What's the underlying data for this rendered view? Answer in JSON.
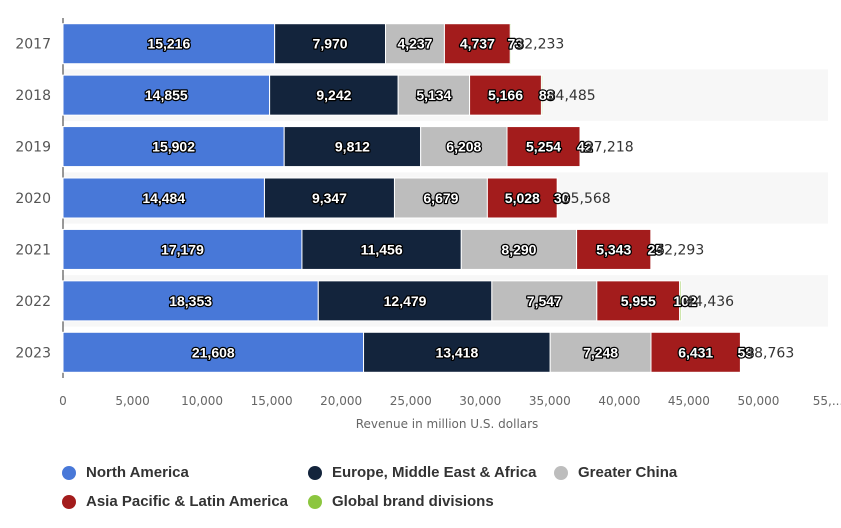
{
  "chart_data": {
    "type": "bar",
    "orientation": "horizontal",
    "stacked": true,
    "categories": [
      "2017",
      "2018",
      "2019",
      "2020",
      "2021",
      "2022",
      "2023"
    ],
    "series": [
      {
        "name": "North America",
        "color": "#4878d8",
        "values": [
          15216,
          14855,
          15902,
          14484,
          17179,
          18353,
          21608
        ]
      },
      {
        "name": "Europe, Middle East & Africa",
        "color": "#13243c",
        "values": [
          7970,
          9242,
          9812,
          9347,
          11456,
          12479,
          13418
        ]
      },
      {
        "name": "Greater China",
        "color": "#bdbdbd",
        "values": [
          4237,
          5134,
          6208,
          6679,
          8290,
          7547,
          7248
        ]
      },
      {
        "name": "Asia Pacific & Latin America",
        "color": "#a31c1c",
        "values": [
          4737,
          5166,
          5254,
          5028,
          5343,
          5955,
          6431
        ]
      },
      {
        "name": "Global brand divisions",
        "color": "#8cc63f",
        "values": [
          73,
          88,
          42,
          30,
          25,
          102,
          58
        ]
      }
    ],
    "data_labels": [
      [
        "15,216",
        "14,855",
        "15,902",
        "14,484",
        "17,179",
        "18,353",
        "21,608"
      ],
      [
        "7,970",
        "9,242",
        "9,812",
        "9,347",
        "11,456",
        "12,479",
        "13,418"
      ],
      [
        "4,237",
        "5,134",
        "6,208",
        "6,679",
        "8,290",
        "7,547",
        "7,248"
      ],
      [
        "4,737",
        "5,166",
        "5,254",
        "5,028",
        "5,343",
        "5,955",
        "6,431"
      ],
      [
        "73",
        "88",
        "42",
        "30",
        "25",
        "102",
        "58"
      ]
    ],
    "end_labels": [
      "32,233",
      "34,485",
      "37,218",
      "35,568",
      "42,293",
      "44,436",
      "48,763"
    ],
    "x_ticks": [
      "0",
      "5,000",
      "10,000",
      "15,000",
      "20,000",
      "25,000",
      "30,000",
      "35,000",
      "40,000",
      "45,000",
      "50,000",
      "55,..."
    ],
    "xlim": [
      0,
      55000
    ],
    "xlabel": "Revenue in million U.S. dollars",
    "ylabel": "",
    "title": "",
    "legend_position": "bottom-left"
  },
  "legend": {
    "items": [
      {
        "label": "North America",
        "color": "#4878d8"
      },
      {
        "label": "Europe, Middle East & Africa",
        "color": "#13243c"
      },
      {
        "label": "Greater China",
        "color": "#bdbdbd"
      },
      {
        "label": "Asia Pacific & Latin America",
        "color": "#a31c1c"
      },
      {
        "label": "Global brand divisions",
        "color": "#8cc63f"
      }
    ]
  }
}
